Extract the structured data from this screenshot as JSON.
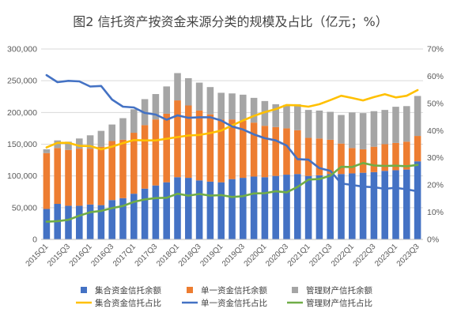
{
  "chart_data": {
    "type": "bar",
    "title": "图2 信托资产按资金来源分类的规模及占比（亿元；%）",
    "categories": [
      "2015Q1",
      "2015Q2",
      "2015Q3",
      "2015Q4",
      "2016Q1",
      "2016Q2",
      "2016Q3",
      "2016Q4",
      "2017Q1",
      "2017Q2",
      "2017Q3",
      "2017Q4",
      "2018Q1",
      "2018Q2",
      "2018Q3",
      "2018Q4",
      "2019Q1",
      "2019Q2",
      "2019Q3",
      "2019Q4",
      "2020Q1",
      "2020Q2",
      "2020Q3",
      "2020Q4",
      "2021Q1",
      "2021Q2",
      "2021Q3",
      "2021Q4",
      "2022Q1",
      "2022Q2",
      "2022Q3",
      "2022Q4",
      "2023Q1",
      "2023Q2",
      "2023Q3"
    ],
    "x_tick_labels": [
      "2015Q1",
      "2015Q3",
      "2016Q1",
      "2016Q3",
      "2017Q1",
      "2017Q3",
      "2018Q1",
      "2018Q3",
      "2019Q1",
      "2019Q3",
      "2020Q1",
      "2020Q3",
      "2021Q1",
      "2021Q3",
      "2022Q1",
      "2022Q3",
      "2023Q1",
      "2023Q3"
    ],
    "y_left": {
      "ylim": [
        0,
        300000
      ],
      "ticks": [
        "0",
        "50,000",
        "100,000",
        "150,000",
        "200,000",
        "250,000",
        "300,000"
      ]
    },
    "y_right": {
      "ylim": [
        0,
        70
      ],
      "ticks": [
        "0%",
        "10%",
        "20%",
        "30%",
        "40%",
        "50%",
        "60%",
        "70%"
      ]
    },
    "legend_position": "bottom",
    "series": [
      {
        "name": "集合资金信托余额",
        "kind": "bar",
        "axis": "left",
        "color": "#4472C4",
        "values": [
          48000,
          56000,
          53000,
          53000,
          55000,
          54000,
          62000,
          65000,
          72000,
          80000,
          85000,
          90000,
          98000,
          97000,
          93000,
          91000,
          90000,
          95000,
          97000,
          99000,
          98000,
          100000,
          102000,
          103000,
          100000,
          101000,
          103000,
          103000,
          104000,
          105000,
          106000,
          108000,
          109000,
          110000,
          123000
        ]
      },
      {
        "name": "单一资金信托余额",
        "kind": "bar",
        "axis": "left",
        "color": "#ED7D31",
        "values": [
          88000,
          88000,
          88000,
          90000,
          88000,
          92000,
          93000,
          92000,
          96000,
          100000,
          104000,
          108000,
          121000,
          114000,
          110000,
          106000,
          99000,
          94000,
          90000,
          85000,
          81000,
          77000,
          73000,
          69000,
          60000,
          58000,
          54000,
          48000,
          40000,
          37000,
          40000,
          42000,
          43000,
          44000,
          40000
        ]
      },
      {
        "name": "管理财产信托余额",
        "kind": "bar",
        "axis": "left",
        "color": "#A5A5A5",
        "values": [
          6000,
          12000,
          13000,
          16000,
          21000,
          25000,
          26000,
          34000,
          37000,
          41000,
          40000,
          43000,
          43000,
          43000,
          44000,
          43000,
          42000,
          41000,
          41000,
          39000,
          39000,
          36000,
          37000,
          41000,
          44000,
          44000,
          44000,
          45000,
          56000,
          57000,
          56000,
          54000,
          57000,
          56000,
          63000
        ]
      },
      {
        "name": "集合资金信托占比",
        "kind": "line",
        "axis": "right",
        "color": "#FFC000",
        "values": [
          33.8,
          35.5,
          35.5,
          34.4,
          34.3,
          33.1,
          34.1,
          35.4,
          36.5,
          36.4,
          36.4,
          37,
          37.6,
          38.2,
          38.4,
          39.1,
          40,
          41.9,
          43.7,
          45.4,
          46.8,
          47.9,
          49.4,
          49.3,
          48.8,
          49.7,
          51.2,
          52.8,
          52,
          51.1,
          52.3,
          53.4,
          52.2,
          52.8,
          54.9
        ]
      },
      {
        "name": "单一资金信托占比",
        "kind": "line",
        "axis": "right",
        "color": "#4472C4",
        "values": [
          60.4,
          57.8,
          58.3,
          58.1,
          56.2,
          56.4,
          51.4,
          48.8,
          48.5,
          46.5,
          45.9,
          44,
          45.6,
          44.7,
          44.9,
          44.9,
          43.7,
          41.5,
          40.4,
          38.6,
          37.2,
          36.4,
          34.5,
          29.5,
          29.3,
          26.2,
          25.2,
          20.6,
          20,
          19.4,
          19.2,
          18.6,
          19,
          18.4,
          17.7
        ]
      },
      {
        "name": "管理财产信托占比",
        "kind": "line",
        "axis": "right",
        "color": "#70AD47",
        "values": [
          6.5,
          6.7,
          7.2,
          8.7,
          10,
          10.5,
          11.5,
          12.3,
          13.8,
          14.7,
          15.2,
          15.3,
          16.8,
          16.1,
          16.7,
          16.1,
          16.3,
          15.6,
          15.9,
          16.9,
          17,
          17.7,
          17.3,
          19.3,
          22,
          22.2,
          23.4,
          26.7,
          26.6,
          28.1,
          27.2,
          27,
          27.1,
          26.9,
          27.4
        ]
      }
    ]
  }
}
